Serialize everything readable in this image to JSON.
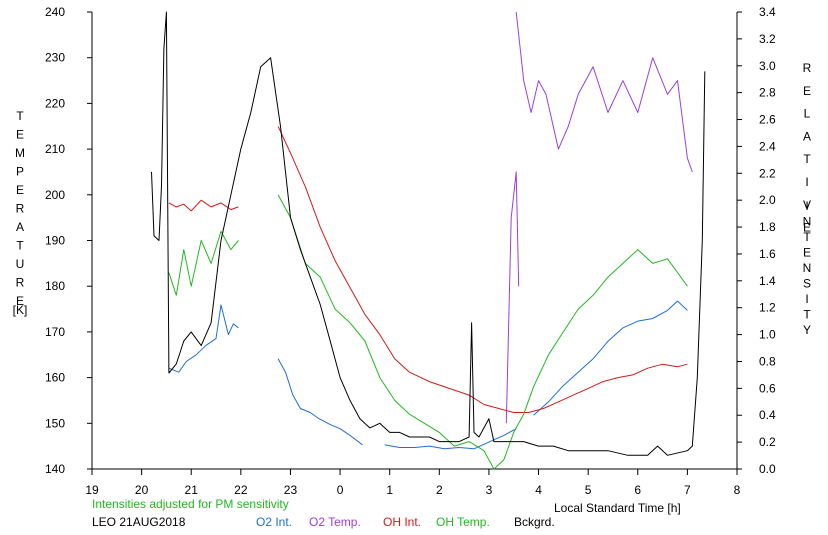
{
  "chart_data": {
    "type": "line",
    "left_axis_title": [
      "T",
      "E",
      "M",
      "P",
      "E",
      "R",
      "A",
      "T",
      "U",
      "R",
      "E"
    ],
    "left_axis_unit": "[K]",
    "right_axis_title_1": [
      "R",
      "E",
      "L",
      "A",
      "T",
      "I",
      "V",
      "E"
    ],
    "right_axis_title_2": [
      "I",
      "N",
      "T",
      "E",
      "N",
      "S",
      "I",
      "T",
      "Y"
    ],
    "x_axis_label": "Local Standard Time [h]",
    "note": "Intensities adjusted for PM sensitivity",
    "station_date": "LEO 21AUG2018",
    "x_tick_labels": [
      "19",
      "20",
      "21",
      "22",
      "23",
      "0",
      "1",
      "2",
      "3",
      "4",
      "5",
      "6",
      "7",
      "8"
    ],
    "x_tick_values": [
      19,
      20,
      21,
      22,
      23,
      24,
      25,
      26,
      27,
      28,
      29,
      30,
      31,
      32
    ],
    "y_left_ticks": [
      140,
      150,
      160,
      170,
      180,
      190,
      200,
      210,
      220,
      230,
      240
    ],
    "y_right_ticks": [
      "0.0",
      "0.2",
      "0.4",
      "0.6",
      "0.8",
      "1.0",
      "1.2",
      "1.4",
      "1.6",
      "1.8",
      "2.0",
      "2.2",
      "2.4",
      "2.6",
      "2.8",
      "3.0",
      "3.2",
      "3.4"
    ],
    "y_right_values": [
      0,
      0.2,
      0.4,
      0.6,
      0.8,
      1.0,
      1.2,
      1.4,
      1.6,
      1.8,
      2.0,
      2.2,
      2.4,
      2.6,
      2.8,
      3.0,
      3.2,
      3.4
    ],
    "xlim": [
      19,
      32
    ],
    "ylim_left": [
      140,
      240
    ],
    "ylim_right": [
      0,
      3.4
    ],
    "grid": false,
    "legend": [
      "O2 Int.",
      "O2 Temp.",
      "OH Int.",
      "OH Temp.",
      "Bckgrd."
    ],
    "series": [
      {
        "name": "O2 Int.",
        "axis": "right",
        "color": "#1f6fd0",
        "segments": [
          [
            [
              20.55,
              0.75
            ],
            [
              20.75,
              0.72
            ],
            [
              20.9,
              0.8
            ],
            [
              21.1,
              0.85
            ],
            [
              21.3,
              0.92
            ],
            [
              21.5,
              0.97
            ],
            [
              21.6,
              1.22
            ],
            [
              21.75,
              1.0
            ],
            [
              21.85,
              1.08
            ],
            [
              21.95,
              1.05
            ]
          ],
          [
            [
              22.75,
              0.82
            ],
            [
              22.9,
              0.72
            ],
            [
              23.05,
              0.55
            ],
            [
              23.2,
              0.45
            ],
            [
              23.4,
              0.42
            ],
            [
              23.55,
              0.38
            ],
            [
              23.8,
              0.33
            ],
            [
              24.0,
              0.3
            ],
            [
              24.2,
              0.25
            ],
            [
              24.45,
              0.18
            ]
          ],
          [
            [
              24.9,
              0.18
            ],
            [
              25.2,
              0.16
            ],
            [
              25.5,
              0.16
            ],
            [
              25.8,
              0.17
            ],
            [
              26.1,
              0.15
            ],
            [
              26.4,
              0.16
            ],
            [
              26.7,
              0.15
            ],
            [
              27.0,
              0.2
            ],
            [
              27.3,
              0.25
            ],
            [
              27.55,
              0.3
            ]
          ],
          [
            [
              27.9,
              0.4
            ],
            [
              28.2,
              0.5
            ],
            [
              28.5,
              0.62
            ],
            [
              28.8,
              0.72
            ],
            [
              29.1,
              0.82
            ],
            [
              29.4,
              0.95
            ],
            [
              29.7,
              1.05
            ],
            [
              30.0,
              1.1
            ],
            [
              30.3,
              1.12
            ],
            [
              30.6,
              1.18
            ],
            [
              30.8,
              1.25
            ],
            [
              31.0,
              1.18
            ]
          ]
        ]
      },
      {
        "name": "O2 Temp.",
        "axis": "left",
        "color": "#9b3fd8",
        "segments": [
          [
            [
              27.35,
              150
            ],
            [
              27.45,
              195
            ],
            [
              27.55,
              205
            ],
            [
              27.6,
              180
            ]
          ],
          [
            [
              27.55,
              240
            ],
            [
              27.7,
              225
            ],
            [
              27.85,
              218
            ],
            [
              28.0,
              225
            ],
            [
              28.15,
              222
            ],
            [
              28.4,
              210
            ],
            [
              28.6,
              215
            ],
            [
              28.8,
              222
            ],
            [
              29.1,
              228
            ],
            [
              29.4,
              218
            ],
            [
              29.7,
              225
            ],
            [
              30.0,
              218
            ],
            [
              30.3,
              230
            ],
            [
              30.6,
              222
            ],
            [
              30.8,
              225
            ],
            [
              31.0,
              208
            ],
            [
              31.1,
              205
            ]
          ]
        ]
      },
      {
        "name": "OH Int.",
        "axis": "right",
        "color": "#d21a1a",
        "segments": [
          [
            [
              20.55,
              1.98
            ],
            [
              20.7,
              1.95
            ],
            [
              20.85,
              1.97
            ],
            [
              21.0,
              1.92
            ],
            [
              21.2,
              2.0
            ],
            [
              21.4,
              1.95
            ],
            [
              21.6,
              1.98
            ],
            [
              21.8,
              1.93
            ],
            [
              21.95,
              1.95
            ]
          ],
          [
            [
              22.75,
              2.55
            ],
            [
              23.0,
              2.35
            ],
            [
              23.3,
              2.1
            ],
            [
              23.6,
              1.8
            ],
            [
              23.9,
              1.55
            ],
            [
              24.2,
              1.35
            ],
            [
              24.5,
              1.15
            ],
            [
              24.8,
              1.0
            ],
            [
              25.1,
              0.82
            ],
            [
              25.4,
              0.72
            ],
            [
              25.8,
              0.65
            ],
            [
              26.2,
              0.6
            ],
            [
              26.6,
              0.55
            ],
            [
              26.9,
              0.48
            ],
            [
              27.2,
              0.45
            ],
            [
              27.5,
              0.42
            ],
            [
              27.8,
              0.42
            ],
            [
              28.1,
              0.45
            ],
            [
              28.4,
              0.5
            ],
            [
              28.7,
              0.55
            ],
            [
              29.0,
              0.6
            ],
            [
              29.3,
              0.65
            ],
            [
              29.6,
              0.68
            ],
            [
              29.9,
              0.7
            ],
            [
              30.2,
              0.75
            ],
            [
              30.5,
              0.78
            ],
            [
              30.8,
              0.76
            ],
            [
              31.0,
              0.78
            ]
          ]
        ]
      },
      {
        "name": "OH Temp.",
        "axis": "left",
        "color": "#22b822",
        "segments": [
          [
            [
              20.55,
              183
            ],
            [
              20.7,
              178
            ],
            [
              20.85,
              188
            ],
            [
              21.0,
              180
            ],
            [
              21.2,
              190
            ],
            [
              21.4,
              185
            ],
            [
              21.6,
              192
            ],
            [
              21.8,
              188
            ],
            [
              21.95,
              190
            ]
          ],
          [
            [
              22.75,
              200
            ],
            [
              23.0,
              195
            ],
            [
              23.3,
              185
            ],
            [
              23.6,
              182
            ],
            [
              23.9,
              175
            ],
            [
              24.2,
              172
            ],
            [
              24.5,
              168
            ],
            [
              24.8,
              160
            ],
            [
              25.1,
              155
            ],
            [
              25.4,
              152
            ],
            [
              25.7,
              150
            ],
            [
              26.0,
              148
            ],
            [
              26.3,
              145
            ],
            [
              26.6,
              146
            ],
            [
              26.9,
              144
            ],
            [
              27.1,
              140
            ],
            [
              27.3,
              142
            ],
            [
              27.5,
              148
            ],
            [
              27.7,
              152
            ],
            [
              27.9,
              158
            ],
            [
              28.2,
              165
            ],
            [
              28.5,
              170
            ],
            [
              28.8,
              175
            ],
            [
              29.1,
              178
            ],
            [
              29.4,
              182
            ],
            [
              29.7,
              185
            ],
            [
              30.0,
              188
            ],
            [
              30.3,
              185
            ],
            [
              30.6,
              186
            ],
            [
              30.8,
              183
            ],
            [
              31.0,
              180
            ]
          ]
        ]
      },
      {
        "name": "Bckgrd.",
        "axis": "left",
        "color": "#000000",
        "segments": [
          [
            [
              20.2,
              205
            ],
            [
              20.25,
              191
            ],
            [
              20.35,
              190
            ],
            [
              20.4,
              202
            ],
            [
              20.45,
              232
            ],
            [
              20.5,
              240
            ],
            [
              20.55,
              161
            ],
            [
              20.7,
              163
            ],
            [
              20.85,
              168
            ],
            [
              21.0,
              170
            ],
            [
              21.2,
              167
            ],
            [
              21.4,
              172
            ],
            [
              21.6,
              190
            ],
            [
              21.8,
              200
            ],
            [
              22.0,
              210
            ],
            [
              22.2,
              218
            ],
            [
              22.4,
              228
            ],
            [
              22.6,
              230
            ],
            [
              22.8,
              215
            ],
            [
              23.0,
              195
            ],
            [
              23.2,
              188
            ],
            [
              23.4,
              182
            ],
            [
              23.6,
              176
            ],
            [
              23.8,
              168
            ],
            [
              24.0,
              160
            ],
            [
              24.2,
              155
            ],
            [
              24.4,
              151
            ],
            [
              24.6,
              149
            ],
            [
              24.8,
              150
            ],
            [
              25.0,
              148
            ],
            [
              25.2,
              148
            ],
            [
              25.4,
              147
            ],
            [
              25.6,
              147
            ],
            [
              25.8,
              147
            ],
            [
              26.0,
              146
            ],
            [
              26.2,
              146
            ],
            [
              26.4,
              146
            ],
            [
              26.6,
              147
            ],
            [
              26.65,
              172
            ],
            [
              26.7,
              148
            ],
            [
              26.8,
              147
            ],
            [
              27.0,
              151
            ],
            [
              27.1,
              146
            ],
            [
              27.3,
              146
            ],
            [
              27.5,
              146
            ],
            [
              27.7,
              146
            ],
            [
              28.0,
              145
            ],
            [
              28.3,
              145
            ],
            [
              28.6,
              144
            ],
            [
              29.0,
              144
            ],
            [
              29.4,
              144
            ],
            [
              29.8,
              143
            ],
            [
              30.2,
              143
            ],
            [
              30.4,
              145
            ],
            [
              30.6,
              143
            ],
            [
              31.0,
              144
            ],
            [
              31.1,
              145
            ],
            [
              31.2,
              160
            ],
            [
              31.3,
              190
            ],
            [
              31.35,
              227
            ]
          ]
        ]
      }
    ],
    "colors": {
      "o2_int": "#1f6fd0",
      "o2_temp": "#9b3fd8",
      "oh_int": "#d21a1a",
      "oh_temp": "#22b822",
      "background": "#000000",
      "note": "#22b822"
    }
  }
}
